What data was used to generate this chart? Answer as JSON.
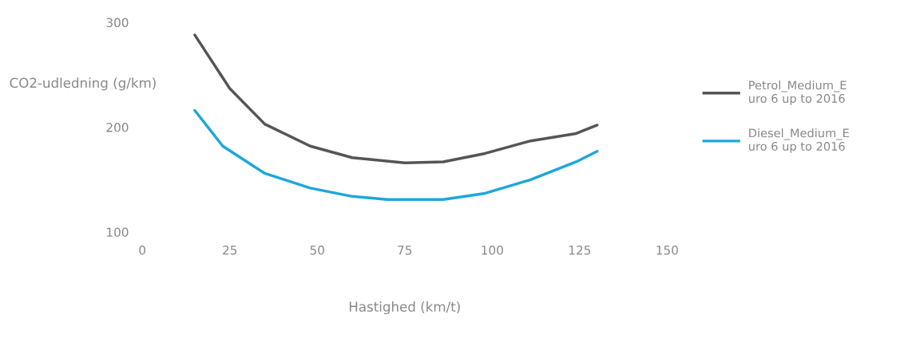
{
  "chart_data": {
    "type": "line",
    "xlabel": "Hastighed (km/t)",
    "ylabel": "CO2-udledning (g/km)",
    "xlim": [
      0,
      150
    ],
    "xticks": [
      0,
      25,
      50,
      75,
      100,
      125,
      150
    ],
    "ylim": [
      100,
      300
    ],
    "yticks": [
      100,
      200,
      300
    ],
    "grid": false,
    "legend": "right",
    "marker": "none",
    "line_style": "solid",
    "series": [
      {
        "name": "Petrol_Medium_E\nuro 6 up to 2016",
        "color": "#555555",
        "x": [
          15,
          25,
          35,
          48,
          60,
          75,
          86,
          98,
          111,
          124,
          130
        ],
        "values": [
          288,
          237,
          203,
          182,
          171,
          166,
          167,
          175,
          187,
          194,
          202
        ]
      },
      {
        "name": "Diesel_Medium_E\nuro 6 up to 2016",
        "color": "#1ea7dc",
        "x": [
          15,
          23,
          35,
          48,
          60,
          70,
          86,
          98,
          111,
          124,
          130
        ],
        "values": [
          216,
          182,
          156,
          142,
          134,
          131,
          131,
          137,
          150,
          167,
          177
        ]
      }
    ]
  }
}
